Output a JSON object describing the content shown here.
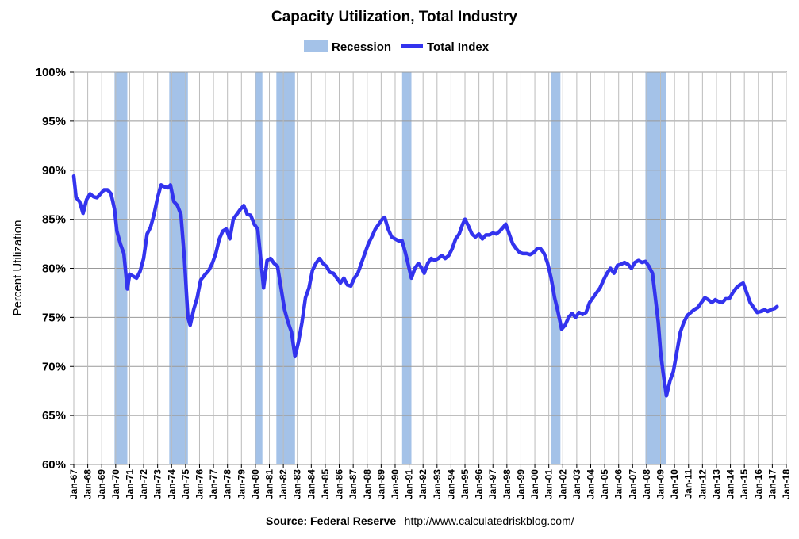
{
  "chart_data": {
    "type": "line",
    "title": "Capacity Utilization, Total Industry",
    "ylabel": "Percent Utilization",
    "ylim": [
      60,
      100
    ],
    "xlim": [
      "1967-01",
      "2018-01"
    ],
    "y_ticks": [
      "60%",
      "65%",
      "70%",
      "75%",
      "80%",
      "85%",
      "90%",
      "95%",
      "100%"
    ],
    "x_ticks": [
      "Jan-67",
      "Jan-68",
      "Jan-69",
      "Jan-70",
      "Jan-71",
      "Jan-72",
      "Jan-73",
      "Jan-74",
      "Jan-75",
      "Jan-76",
      "Jan-77",
      "Jan-78",
      "Jan-79",
      "Jan-80",
      "Jan-81",
      "Jan-82",
      "Jan-83",
      "Jan-84",
      "Jan-85",
      "Jan-86",
      "Jan-87",
      "Jan-88",
      "Jan-89",
      "Jan-90",
      "Jan-91",
      "Jan-92",
      "Jan-93",
      "Jan-94",
      "Jan-95",
      "Jan-96",
      "Jan-97",
      "Jan-98",
      "Jan-99",
      "Jan-00",
      "Jan-01",
      "Jan-02",
      "Jan-03",
      "Jan-04",
      "Jan-05",
      "Jan-06",
      "Jan-07",
      "Jan-08",
      "Jan-09",
      "Jan-10",
      "Jan-11",
      "Jan-12",
      "Jan-13",
      "Jan-14",
      "Jan-15",
      "Jan-16",
      "Jan-17",
      "Jan-18"
    ],
    "grid": true,
    "legend_position": "top-center",
    "legend": [
      {
        "label": "Recession",
        "kind": "area",
        "color": "#a4c2e8"
      },
      {
        "label": "Total Index",
        "kind": "line",
        "color": "#3333ee"
      }
    ],
    "recessions": [
      {
        "start": "1969-12",
        "end": "1970-11"
      },
      {
        "start": "1973-11",
        "end": "1975-03"
      },
      {
        "start": "1980-01",
        "end": "1980-07"
      },
      {
        "start": "1981-07",
        "end": "1982-11"
      },
      {
        "start": "1990-07",
        "end": "1991-03"
      },
      {
        "start": "2001-03",
        "end": "2001-11"
      },
      {
        "start": "2007-12",
        "end": "2009-06"
      }
    ],
    "series": [
      {
        "name": "Total Index",
        "color": "#3333ee",
        "points": [
          [
            "1967-01",
            89.4
          ],
          [
            "1967-03",
            87.2
          ],
          [
            "1967-06",
            86.8
          ],
          [
            "1967-09",
            85.6
          ],
          [
            "1967-12",
            87.0
          ],
          [
            "1968-03",
            87.6
          ],
          [
            "1968-06",
            87.3
          ],
          [
            "1968-09",
            87.2
          ],
          [
            "1968-12",
            87.6
          ],
          [
            "1969-03",
            88.0
          ],
          [
            "1969-06",
            88.0
          ],
          [
            "1969-09",
            87.6
          ],
          [
            "1969-12",
            86.0
          ],
          [
            "1970-02",
            83.8
          ],
          [
            "1970-05",
            82.5
          ],
          [
            "1970-08",
            81.5
          ],
          [
            "1970-11",
            77.9
          ],
          [
            "1971-01",
            79.4
          ],
          [
            "1971-04",
            79.2
          ],
          [
            "1971-07",
            79.0
          ],
          [
            "1971-10",
            79.7
          ],
          [
            "1972-01",
            81.0
          ],
          [
            "1972-04",
            83.5
          ],
          [
            "1972-07",
            84.2
          ],
          [
            "1972-10",
            85.5
          ],
          [
            "1973-01",
            87.2
          ],
          [
            "1973-04",
            88.5
          ],
          [
            "1973-07",
            88.3
          ],
          [
            "1973-10",
            88.2
          ],
          [
            "1973-12",
            88.5
          ],
          [
            "1974-03",
            86.8
          ],
          [
            "1974-06",
            86.4
          ],
          [
            "1974-09",
            85.5
          ],
          [
            "1974-12",
            81.0
          ],
          [
            "1975-03",
            75.0
          ],
          [
            "1975-05",
            74.2
          ],
          [
            "1975-08",
            75.8
          ],
          [
            "1975-11",
            77.0
          ],
          [
            "1976-02",
            78.8
          ],
          [
            "1976-06",
            79.4
          ],
          [
            "1976-09",
            79.8
          ],
          [
            "1976-12",
            80.5
          ],
          [
            "1977-03",
            81.5
          ],
          [
            "1977-06",
            83.0
          ],
          [
            "1977-09",
            83.8
          ],
          [
            "1977-12",
            84.0
          ],
          [
            "1978-03",
            83.0
          ],
          [
            "1978-06",
            85.0
          ],
          [
            "1978-09",
            85.5
          ],
          [
            "1978-12",
            86.0
          ],
          [
            "1979-03",
            86.4
          ],
          [
            "1979-06",
            85.5
          ],
          [
            "1979-09",
            85.4
          ],
          [
            "1979-12",
            84.5
          ],
          [
            "1980-03",
            84.0
          ],
          [
            "1980-06",
            80.5
          ],
          [
            "1980-08",
            78.0
          ],
          [
            "1980-11",
            80.8
          ],
          [
            "1981-02",
            81.0
          ],
          [
            "1981-05",
            80.5
          ],
          [
            "1981-08",
            80.2
          ],
          [
            "1981-11",
            78.0
          ],
          [
            "1982-02",
            75.8
          ],
          [
            "1982-05",
            74.5
          ],
          [
            "1982-08",
            73.5
          ],
          [
            "1982-11",
            71.0
          ],
          [
            "1983-02",
            72.5
          ],
          [
            "1983-05",
            74.5
          ],
          [
            "1983-08",
            77.0
          ],
          [
            "1983-11",
            78.0
          ],
          [
            "1984-02",
            79.8
          ],
          [
            "1984-05",
            80.5
          ],
          [
            "1984-08",
            81.0
          ],
          [
            "1984-11",
            80.5
          ],
          [
            "1985-02",
            80.2
          ],
          [
            "1985-05",
            79.6
          ],
          [
            "1985-08",
            79.5
          ],
          [
            "1985-11",
            79.0
          ],
          [
            "1986-02",
            78.5
          ],
          [
            "1986-05",
            79.0
          ],
          [
            "1986-08",
            78.3
          ],
          [
            "1986-11",
            78.2
          ],
          [
            "1987-02",
            79.0
          ],
          [
            "1987-05",
            79.5
          ],
          [
            "1987-08",
            80.5
          ],
          [
            "1987-11",
            81.5
          ],
          [
            "1988-02",
            82.5
          ],
          [
            "1988-05",
            83.2
          ],
          [
            "1988-08",
            84.0
          ],
          [
            "1988-11",
            84.5
          ],
          [
            "1989-02",
            85.0
          ],
          [
            "1989-04",
            85.2
          ],
          [
            "1989-07",
            84.0
          ],
          [
            "1989-10",
            83.2
          ],
          [
            "1990-01",
            83.0
          ],
          [
            "1990-04",
            82.8
          ],
          [
            "1990-07",
            82.8
          ],
          [
            "1990-10",
            81.5
          ],
          [
            "1991-01",
            80.0
          ],
          [
            "1991-03",
            79.0
          ],
          [
            "1991-06",
            80.0
          ],
          [
            "1991-09",
            80.5
          ],
          [
            "1991-12",
            80.0
          ],
          [
            "1992-02",
            79.5
          ],
          [
            "1992-05",
            80.5
          ],
          [
            "1992-08",
            81.0
          ],
          [
            "1992-11",
            80.8
          ],
          [
            "1993-02",
            81.0
          ],
          [
            "1993-05",
            81.3
          ],
          [
            "1993-08",
            81.0
          ],
          [
            "1993-11",
            81.3
          ],
          [
            "1994-02",
            82.0
          ],
          [
            "1994-05",
            83.0
          ],
          [
            "1994-08",
            83.5
          ],
          [
            "1994-11",
            84.5
          ],
          [
            "1995-01",
            85.0
          ],
          [
            "1995-04",
            84.3
          ],
          [
            "1995-07",
            83.5
          ],
          [
            "1995-10",
            83.2
          ],
          [
            "1996-01",
            83.5
          ],
          [
            "1996-04",
            83.0
          ],
          [
            "1996-07",
            83.4
          ],
          [
            "1996-10",
            83.4
          ],
          [
            "1997-01",
            83.6
          ],
          [
            "1997-04",
            83.5
          ],
          [
            "1997-07",
            83.8
          ],
          [
            "1997-10",
            84.2
          ],
          [
            "1997-12",
            84.5
          ],
          [
            "1998-03",
            83.5
          ],
          [
            "1998-06",
            82.5
          ],
          [
            "1998-09",
            82.0
          ],
          [
            "1998-12",
            81.6
          ],
          [
            "1999-03",
            81.5
          ],
          [
            "1999-06",
            81.5
          ],
          [
            "1999-09",
            81.4
          ],
          [
            "1999-12",
            81.6
          ],
          [
            "2000-03",
            82.0
          ],
          [
            "2000-06",
            82.0
          ],
          [
            "2000-09",
            81.5
          ],
          [
            "2000-12",
            80.5
          ],
          [
            "2001-03",
            79.0
          ],
          [
            "2001-06",
            77.0
          ],
          [
            "2001-09",
            75.5
          ],
          [
            "2001-12",
            73.8
          ],
          [
            "2002-03",
            74.2
          ],
          [
            "2002-06",
            75.0
          ],
          [
            "2002-09",
            75.4
          ],
          [
            "2002-12",
            75.0
          ],
          [
            "2003-03",
            75.5
          ],
          [
            "2003-06",
            75.3
          ],
          [
            "2003-09",
            75.5
          ],
          [
            "2003-12",
            76.5
          ],
          [
            "2004-03",
            77.0
          ],
          [
            "2004-06",
            77.5
          ],
          [
            "2004-09",
            78.0
          ],
          [
            "2004-12",
            78.8
          ],
          [
            "2005-03",
            79.5
          ],
          [
            "2005-06",
            80.0
          ],
          [
            "2005-09",
            79.5
          ],
          [
            "2005-12",
            80.3
          ],
          [
            "2006-03",
            80.4
          ],
          [
            "2006-06",
            80.6
          ],
          [
            "2006-09",
            80.4
          ],
          [
            "2006-12",
            80.0
          ],
          [
            "2007-03",
            80.6
          ],
          [
            "2007-06",
            80.8
          ],
          [
            "2007-09",
            80.6
          ],
          [
            "2007-12",
            80.7
          ],
          [
            "2008-03",
            80.2
          ],
          [
            "2008-06",
            79.5
          ],
          [
            "2008-09",
            76.5
          ],
          [
            "2008-11",
            74.5
          ],
          [
            "2009-01",
            71.5
          ],
          [
            "2009-03",
            69.5
          ],
          [
            "2009-06",
            67.0
          ],
          [
            "2009-09",
            68.5
          ],
          [
            "2009-12",
            69.5
          ],
          [
            "2010-03",
            71.5
          ],
          [
            "2010-06",
            73.5
          ],
          [
            "2010-09",
            74.5
          ],
          [
            "2010-12",
            75.2
          ],
          [
            "2011-03",
            75.5
          ],
          [
            "2011-06",
            75.8
          ],
          [
            "2011-09",
            76.0
          ],
          [
            "2011-12",
            76.5
          ],
          [
            "2012-03",
            77.0
          ],
          [
            "2012-06",
            76.8
          ],
          [
            "2012-09",
            76.5
          ],
          [
            "2012-12",
            76.8
          ],
          [
            "2013-03",
            76.6
          ],
          [
            "2013-06",
            76.5
          ],
          [
            "2013-09",
            76.9
          ],
          [
            "2013-12",
            76.9
          ],
          [
            "2014-03",
            77.5
          ],
          [
            "2014-06",
            78.0
          ],
          [
            "2014-09",
            78.3
          ],
          [
            "2014-12",
            78.5
          ],
          [
            "2015-03",
            77.5
          ],
          [
            "2015-06",
            76.5
          ],
          [
            "2015-09",
            76.0
          ],
          [
            "2015-12",
            75.5
          ],
          [
            "2016-03",
            75.6
          ],
          [
            "2016-06",
            75.8
          ],
          [
            "2016-09",
            75.6
          ],
          [
            "2016-12",
            75.8
          ],
          [
            "2017-03",
            75.9
          ],
          [
            "2017-05",
            76.1
          ]
        ]
      }
    ]
  },
  "source": {
    "label": "Source: Federal Reserve",
    "url": "http://www.calculatedriskblog.com/"
  }
}
